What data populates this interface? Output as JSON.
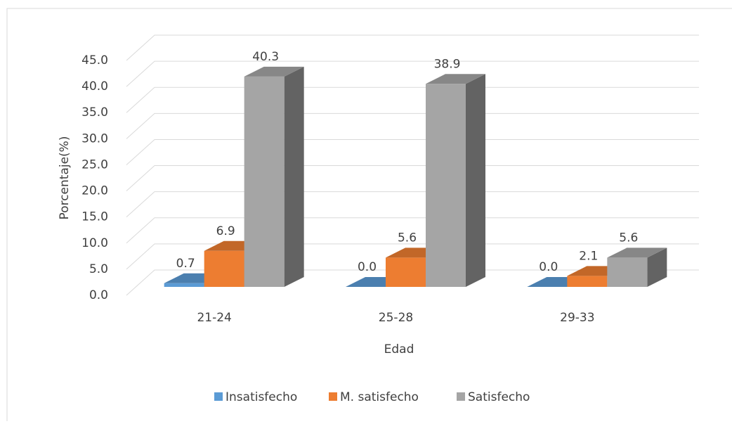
{
  "chart_data": {
    "type": "bar3d",
    "categories": [
      "21-24",
      "25-28",
      "29-33"
    ],
    "series": [
      {
        "name": "Insatisfecho",
        "color": "#5b9bd5",
        "values": [
          0.7,
          0.0,
          0.0
        ],
        "value_labels": [
          "0.7",
          "0.0",
          "0.0"
        ]
      },
      {
        "name": "M. satisfecho",
        "color": "#ed7d31",
        "values": [
          6.9,
          5.6,
          2.1
        ],
        "value_labels": [
          "6.9",
          "5.6",
          "2.1"
        ]
      },
      {
        "name": "Satisfecho",
        "color": "#a5a5a5",
        "values": [
          40.3,
          38.9,
          5.6
        ],
        "value_labels": [
          "40.3",
          "38.9",
          "5.6"
        ]
      }
    ],
    "xlabel": "Edad",
    "ylabel": "Porcentaje(%)",
    "ylim": [
      0,
      45
    ],
    "yticks": [
      {
        "value": 0,
        "label": "0.0"
      },
      {
        "value": 5,
        "label": "5.0"
      },
      {
        "value": 10,
        "label": "10.0"
      },
      {
        "value": 15,
        "label": "15.0"
      },
      {
        "value": 20,
        "label": "20.0"
      },
      {
        "value": 25,
        "label": "25.0"
      },
      {
        "value": 30,
        "label": "30.0"
      },
      {
        "value": 35,
        "label": "35.0"
      },
      {
        "value": 40,
        "label": "40.0"
      },
      {
        "value": 45,
        "label": "45.0"
      }
    ],
    "grid": true,
    "legend": "bottom"
  }
}
